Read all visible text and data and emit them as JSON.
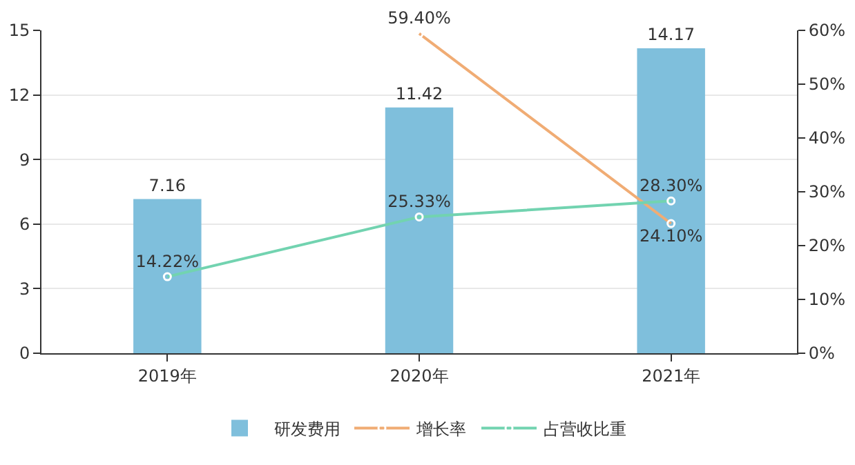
{
  "chart_data": {
    "type": "bar",
    "categories": [
      "2019年",
      "2020年",
      "2021年"
    ],
    "series": [
      {
        "name": "研发费用",
        "color": "#7fbfdc",
        "values": [
          7.16,
          11.42,
          14.17
        ],
        "value_labels": [
          "7.16",
          "11.42",
          "14.17"
        ]
      },
      {
        "name": "增长率",
        "type": "line",
        "axis": "y2",
        "color": "#f0ac74",
        "values": [
          null,
          59.4,
          24.1
        ],
        "value_labels": [
          null,
          "59.40%",
          "24.10%"
        ]
      },
      {
        "name": "占营收比重",
        "type": "line",
        "axis": "y2",
        "color": "#72d3b0",
        "values": [
          14.22,
          25.33,
          28.3
        ],
        "value_labels": [
          "14.22%",
          "25.33%",
          "28.30%"
        ]
      }
    ],
    "ylim": [
      0,
      15
    ],
    "yticks": [
      0,
      3,
      6,
      9,
      12,
      15
    ],
    "y2lim": [
      0,
      60
    ],
    "y2ticks": [
      {
        "value": 0,
        "label": "0%"
      },
      {
        "value": 10,
        "label": "10%"
      },
      {
        "value": 20,
        "label": "20%"
      },
      {
        "value": 30,
        "label": "30%"
      },
      {
        "value": 40,
        "label": "40%"
      },
      {
        "value": 50,
        "label": "50%"
      },
      {
        "value": 60,
        "label": "60%"
      }
    ],
    "grid": "y",
    "legend": "bottom",
    "marker": "circle",
    "line_style": "solid"
  }
}
